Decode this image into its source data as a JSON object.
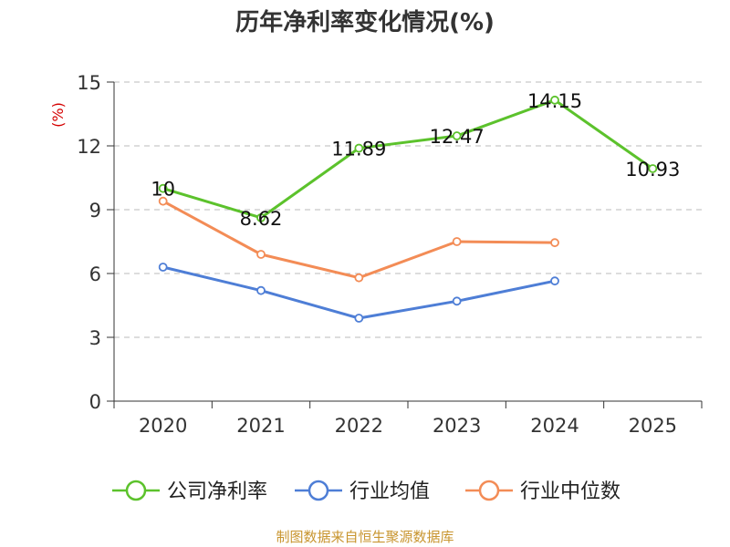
{
  "chart_data": {
    "type": "line",
    "title": "历年净利率变化情况(%)",
    "ylabel": "(%)",
    "xlabel": "",
    "categories": [
      "2020",
      "2021",
      "2022",
      "2023",
      "2024",
      "2025"
    ],
    "ylim": [
      0,
      15
    ],
    "yticks": [
      "0",
      "3",
      "6",
      "9",
      "12",
      "15"
    ],
    "grid": true,
    "legend_position": "bottom",
    "series": [
      {
        "name": "公司净利率",
        "color": "#5cc22c",
        "values": [
          10,
          8.62,
          11.89,
          12.47,
          14.15,
          10.93
        ],
        "labels": [
          "10",
          "8.62",
          "11.89",
          "12.47",
          "14.15",
          "10.93"
        ]
      },
      {
        "name": "行业均值",
        "color": "#4e7ed6",
        "values": [
          6.3,
          5.2,
          3.9,
          4.7,
          5.65,
          null
        ]
      },
      {
        "name": "行业中位数",
        "color": "#f38c56",
        "values": [
          9.4,
          6.9,
          5.8,
          7.5,
          7.45,
          null
        ]
      }
    ]
  },
  "source_note": "制图数据来自恒生聚源数据库",
  "colors": {
    "axis": "#333333",
    "grid": "#bbbbbb",
    "ylabel": "#d40000",
    "source": "#c8952f"
  }
}
